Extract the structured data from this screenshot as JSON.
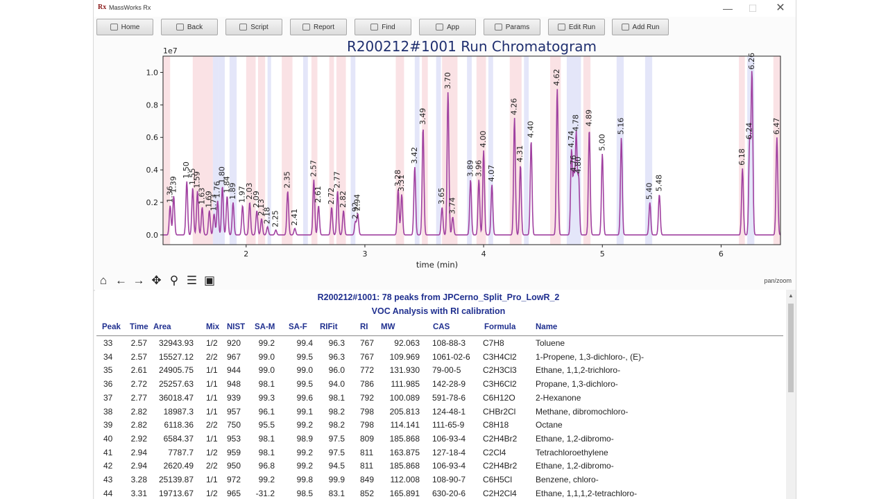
{
  "window": {
    "title": "MassWorks Rx",
    "logo": "Rx",
    "controls": {
      "minimize": "—",
      "maximize": "☐",
      "close": "✕"
    }
  },
  "toolbar": [
    {
      "label": "Home",
      "icon": "home-icon"
    },
    {
      "label": "Back",
      "icon": "back-icon"
    },
    {
      "label": "Script",
      "icon": "script-icon"
    },
    {
      "label": "Report",
      "icon": "report-icon"
    },
    {
      "label": "Find",
      "icon": "search-icon"
    },
    {
      "label": "App",
      "icon": "app-icon"
    },
    {
      "label": "Params",
      "icon": "gear-icon"
    },
    {
      "label": "Edit Run",
      "icon": "edit-icon"
    },
    {
      "label": "Add Run",
      "icon": "add-icon"
    }
  ],
  "chart_data": {
    "type": "line",
    "title": "R200212#1001 Run Chromatogram",
    "xlabel": "time (min)",
    "ylabel": "",
    "y_scale_label": "1e7",
    "xlim": [
      1.3,
      6.5
    ],
    "ylim": [
      -0.06,
      1.1
    ],
    "xticks": [
      2,
      3,
      4,
      5,
      6
    ],
    "yticks": [
      0.0,
      0.2,
      0.4,
      0.6,
      0.8,
      1.0
    ],
    "color": "#a040a0",
    "peaks": [
      {
        "x": 1.36,
        "y": 0.18,
        "label": "1.36"
      },
      {
        "x": 1.39,
        "y": 0.24,
        "label": "1.39"
      },
      {
        "x": 1.5,
        "y": 0.33,
        "label": "1.50"
      },
      {
        "x": 1.55,
        "y": 0.29,
        "label": "1.55"
      },
      {
        "x": 1.59,
        "y": 0.27,
        "label": "1.59"
      },
      {
        "x": 1.63,
        "y": 0.17,
        "label": "1.63"
      },
      {
        "x": 1.69,
        "y": 0.15,
        "label": "1.69"
      },
      {
        "x": 1.73,
        "y": 0.13,
        "label": "1.73"
      },
      {
        "x": 1.76,
        "y": 0.21,
        "label": "1.76"
      },
      {
        "x": 1.8,
        "y": 0.3,
        "label": "1.80"
      },
      {
        "x": 1.84,
        "y": 0.24,
        "label": "1.84"
      },
      {
        "x": 1.89,
        "y": 0.2,
        "label": "1.89"
      },
      {
        "x": 1.97,
        "y": 0.18,
        "label": "1.97"
      },
      {
        "x": 2.03,
        "y": 0.2,
        "label": "2.03"
      },
      {
        "x": 2.09,
        "y": 0.15,
        "label": "2.09"
      },
      {
        "x": 2.13,
        "y": 0.1,
        "label": "2.13"
      },
      {
        "x": 2.18,
        "y": 0.05,
        "label": "2.18"
      },
      {
        "x": 2.25,
        "y": 0.03,
        "label": "2.25"
      },
      {
        "x": 2.35,
        "y": 0.27,
        "label": "2.35"
      },
      {
        "x": 2.41,
        "y": 0.04,
        "label": "2.41"
      },
      {
        "x": 2.57,
        "y": 0.34,
        "label": "2.57"
      },
      {
        "x": 2.61,
        "y": 0.18,
        "label": "2.61"
      },
      {
        "x": 2.72,
        "y": 0.17,
        "label": "2.72"
      },
      {
        "x": 2.77,
        "y": 0.27,
        "label": "2.77"
      },
      {
        "x": 2.82,
        "y": 0.15,
        "label": "2.82"
      },
      {
        "x": 2.92,
        "y": 0.08,
        "label": "2.92"
      },
      {
        "x": 2.94,
        "y": 0.13,
        "label": "2.94"
      },
      {
        "x": 3.28,
        "y": 0.28,
        "label": "3.28"
      },
      {
        "x": 3.31,
        "y": 0.25,
        "label": "3.31"
      },
      {
        "x": 3.42,
        "y": 0.42,
        "label": "3.42"
      },
      {
        "x": 3.49,
        "y": 0.66,
        "label": "3.49"
      },
      {
        "x": 3.65,
        "y": 0.17,
        "label": "3.65"
      },
      {
        "x": 3.7,
        "y": 0.88,
        "label": "3.70"
      },
      {
        "x": 3.74,
        "y": 0.11,
        "label": "3.74"
      },
      {
        "x": 3.89,
        "y": 0.34,
        "label": "3.89"
      },
      {
        "x": 3.96,
        "y": 0.34,
        "label": "3.96"
      },
      {
        "x": 4.0,
        "y": 0.52,
        "label": "4.00"
      },
      {
        "x": 4.07,
        "y": 0.31,
        "label": "4.07"
      },
      {
        "x": 4.26,
        "y": 0.72,
        "label": "4.26"
      },
      {
        "x": 4.31,
        "y": 0.43,
        "label": "4.31"
      },
      {
        "x": 4.4,
        "y": 0.58,
        "label": "4.40"
      },
      {
        "x": 4.62,
        "y": 0.9,
        "label": "4.62"
      },
      {
        "x": 4.74,
        "y": 0.52,
        "label": "4.74"
      },
      {
        "x": 4.76,
        "y": 0.37,
        "label": "4.76"
      },
      {
        "x": 4.78,
        "y": 0.62,
        "label": "4.78"
      },
      {
        "x": 4.8,
        "y": 0.36,
        "label": "4.80"
      },
      {
        "x": 4.89,
        "y": 0.65,
        "label": "4.89"
      },
      {
        "x": 5.0,
        "y": 0.5,
        "label": "5.00"
      },
      {
        "x": 5.16,
        "y": 0.6,
        "label": "5.16"
      },
      {
        "x": 5.4,
        "y": 0.2,
        "label": "5.40"
      },
      {
        "x": 5.48,
        "y": 0.25,
        "label": "5.48"
      },
      {
        "x": 6.18,
        "y": 0.41,
        "label": "6.18"
      },
      {
        "x": 6.24,
        "y": 0.57,
        "label": "6.24"
      },
      {
        "x": 6.26,
        "y": 1.0,
        "label": "6.26"
      },
      {
        "x": 6.47,
        "y": 0.6,
        "label": "6.47"
      }
    ],
    "bands": [
      {
        "x0": 1.3,
        "x1": 1.36,
        "color": "pink"
      },
      {
        "x0": 1.55,
        "x1": 1.72,
        "color": "pink"
      },
      {
        "x0": 1.72,
        "x1": 1.77,
        "color": "blue"
      },
      {
        "x0": 1.77,
        "x1": 1.82,
        "color": "blue"
      },
      {
        "x0": 1.86,
        "x1": 1.92,
        "color": "blue"
      },
      {
        "x0": 2.0,
        "x1": 2.08,
        "color": "pink"
      },
      {
        "x0": 2.1,
        "x1": 2.16,
        "color": "pink"
      },
      {
        "x0": 2.18,
        "x1": 2.21,
        "color": "blue"
      },
      {
        "x0": 2.3,
        "x1": 2.39,
        "color": "pink"
      },
      {
        "x0": 2.48,
        "x1": 2.52,
        "color": "blue"
      },
      {
        "x0": 2.55,
        "x1": 2.6,
        "color": "pink"
      },
      {
        "x0": 2.7,
        "x1": 2.74,
        "color": "pink"
      },
      {
        "x0": 2.76,
        "x1": 2.84,
        "color": "pink"
      },
      {
        "x0": 2.88,
        "x1": 2.92,
        "color": "blue"
      },
      {
        "x0": 3.26,
        "x1": 3.33,
        "color": "pink"
      },
      {
        "x0": 3.42,
        "x1": 3.46,
        "color": "blue"
      },
      {
        "x0": 3.48,
        "x1": 3.53,
        "color": "pink"
      },
      {
        "x0": 3.6,
        "x1": 3.64,
        "color": "blue"
      },
      {
        "x0": 3.65,
        "x1": 3.78,
        "color": "pink"
      },
      {
        "x0": 3.86,
        "x1": 3.9,
        "color": "blue"
      },
      {
        "x0": 3.94,
        "x1": 4.02,
        "color": "pink"
      },
      {
        "x0": 4.04,
        "x1": 4.08,
        "color": "blue"
      },
      {
        "x0": 4.22,
        "x1": 4.32,
        "color": "pink"
      },
      {
        "x0": 4.34,
        "x1": 4.38,
        "color": "blue"
      },
      {
        "x0": 4.56,
        "x1": 4.65,
        "color": "pink"
      },
      {
        "x0": 4.7,
        "x1": 4.82,
        "color": "blue"
      },
      {
        "x0": 4.84,
        "x1": 4.9,
        "color": "pink"
      },
      {
        "x0": 5.12,
        "x1": 5.18,
        "color": "blue"
      },
      {
        "x0": 5.36,
        "x1": 5.42,
        "color": "blue"
      },
      {
        "x0": 6.15,
        "x1": 6.2,
        "color": "pink"
      },
      {
        "x0": 6.22,
        "x1": 6.28,
        "color": "blue"
      },
      {
        "x0": 6.44,
        "x1": 6.5,
        "color": "pink"
      }
    ]
  },
  "nav": {
    "buttons": [
      {
        "glyph": "⌂",
        "name": "home-view-icon"
      },
      {
        "glyph": "←",
        "name": "back-arrow-icon"
      },
      {
        "glyph": "→",
        "name": "forward-arrow-icon"
      },
      {
        "glyph": "✥",
        "name": "pan-icon"
      },
      {
        "glyph": "⚲",
        "name": "zoom-icon"
      },
      {
        "glyph": "☰",
        "name": "configure-subplots-icon"
      },
      {
        "glyph": "▣",
        "name": "save-figure-icon"
      }
    ],
    "mode": "pan/zoom"
  },
  "table": {
    "title": "R200212#1001: 78 peaks from JPCerno_Split_Pro_LowR_2",
    "subtitle": "VOC Analysis with RI calibration",
    "columns": [
      "Peak",
      "Time",
      "Area",
      "Mix",
      "NIST",
      "SA-M",
      "SA-F",
      "RIFit",
      "RI",
      "MW",
      "CAS",
      "Formula",
      "Name"
    ],
    "rows": [
      [
        "33",
        "2.57",
        "32943.93",
        "1/2",
        "920",
        "99.2",
        "99.4",
        "96.3",
        "767",
        "92.063",
        "108-88-3",
        "C7H8",
        "Toluene"
      ],
      [
        "34",
        "2.57",
        "15527.12",
        "2/2",
        "967",
        "99.0",
        "99.5",
        "96.3",
        "767",
        "109.969",
        "1061-02-6",
        "C3H4Cl2",
        "1-Propene, 1,3-dichloro-, (E)-"
      ],
      [
        "35",
        "2.61",
        "24905.75",
        "1/1",
        "944",
        "99.0",
        "99.0",
        "96.0",
        "772",
        "131.930",
        "79-00-5",
        "C2H3Cl3",
        "Ethane, 1,1,2-trichloro-"
      ],
      [
        "36",
        "2.72",
        "25257.63",
        "1/1",
        "948",
        "98.1",
        "99.5",
        "94.0",
        "786",
        "111.985",
        "142-28-9",
        "C3H6Cl2",
        "Propane, 1,3-dichloro-"
      ],
      [
        "37",
        "2.77",
        "36018.47",
        "1/1",
        "939",
        "99.3",
        "99.6",
        "98.1",
        "792",
        "100.089",
        "591-78-6",
        "C6H12O",
        "2-Hexanone"
      ],
      [
        "38",
        "2.82",
        "18987.3",
        "1/1",
        "957",
        "96.1",
        "99.1",
        "98.2",
        "798",
        "205.813",
        "124-48-1",
        "CHBr2Cl",
        "Methane, dibromochloro-"
      ],
      [
        "39",
        "2.82",
        "6118.36",
        "2/2",
        "750",
        "95.5",
        "99.2",
        "98.2",
        "798",
        "114.141",
        "111-65-9",
        "C8H18",
        "Octane"
      ],
      [
        "40",
        "2.92",
        "6584.37",
        "1/1",
        "953",
        "98.1",
        "98.9",
        "97.5",
        "809",
        "185.868",
        "106-93-4",
        "C2H4Br2",
        "Ethane, 1,2-dibromo-"
      ],
      [
        "41",
        "2.94",
        "7787.7",
        "1/2",
        "959",
        "98.1",
        "99.2",
        "97.5",
        "811",
        "163.875",
        "127-18-4",
        "C2Cl4",
        "Tetrachloroethylene"
      ],
      [
        "42",
        "2.94",
        "2620.49",
        "2/2",
        "950",
        "96.8",
        "99.2",
        "94.5",
        "811",
        "185.868",
        "106-93-4",
        "C2H4Br2",
        "Ethane, 1,2-dibromo-"
      ],
      [
        "43",
        "3.28",
        "25139.87",
        "1/1",
        "972",
        "99.2",
        "99.8",
        "99.9",
        "849",
        "112.008",
        "108-90-7",
        "C6H5Cl",
        "Benzene, chloro-"
      ],
      [
        "44",
        "3.31",
        "19713.67",
        "1/2",
        "965",
        "-31.2",
        "98.5",
        "83.1",
        "852",
        "165.891",
        "630-20-6",
        "C2H2Cl4",
        "Ethane, 1,1,1,2-tetrachloro-"
      ]
    ]
  }
}
